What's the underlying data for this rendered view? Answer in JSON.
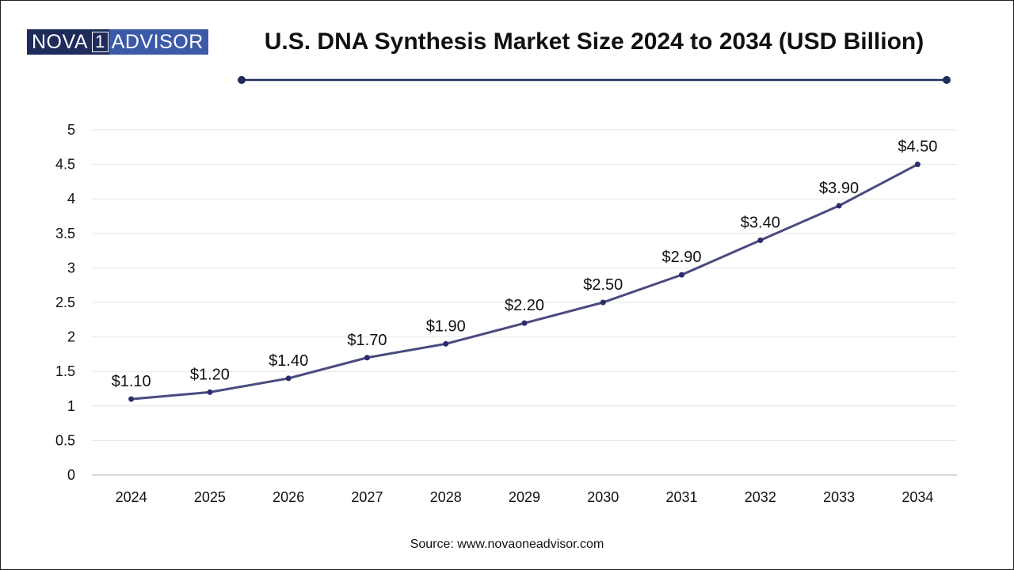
{
  "brand": {
    "logo_part1": "NOVA",
    "logo_part2": "1",
    "logo_part3": "ADVISOR",
    "dark_color": "#1f2b5a",
    "light_color": "#3b5aa8"
  },
  "header": {
    "title": "U.S. DNA Synthesis Market Size 2024 to 2034 (USD Billion)"
  },
  "footer": {
    "source": "Source: www.novaoneadvisor.com"
  },
  "chart_data": {
    "type": "line",
    "title": "U.S. DNA Synthesis Market Size 2024 to 2034 (USD Billion)",
    "xlabel": "",
    "ylabel": "",
    "categories": [
      "2024",
      "2025",
      "2026",
      "2027",
      "2028",
      "2029",
      "2030",
      "2031",
      "2032",
      "2033",
      "2034"
    ],
    "series": [
      {
        "values": [
          1.1,
          1.2,
          1.4,
          1.7,
          1.9,
          2.2,
          2.5,
          2.9,
          3.4,
          3.9,
          4.5
        ],
        "labels": [
          "$1.10",
          "$1.20",
          "$1.40",
          "$1.70",
          "$1.90",
          "$2.20",
          "$2.50",
          "$2.90",
          "$3.40",
          "$3.90",
          "$4.50"
        ],
        "color": "#4a4a80"
      }
    ],
    "ylim": [
      0,
      5
    ],
    "yticks": [
      "0",
      "0.5",
      "1",
      "1.5",
      "2",
      "2.5",
      "3",
      "3.5",
      "4",
      "4.5",
      "5"
    ],
    "grid": true,
    "legend": "none"
  }
}
